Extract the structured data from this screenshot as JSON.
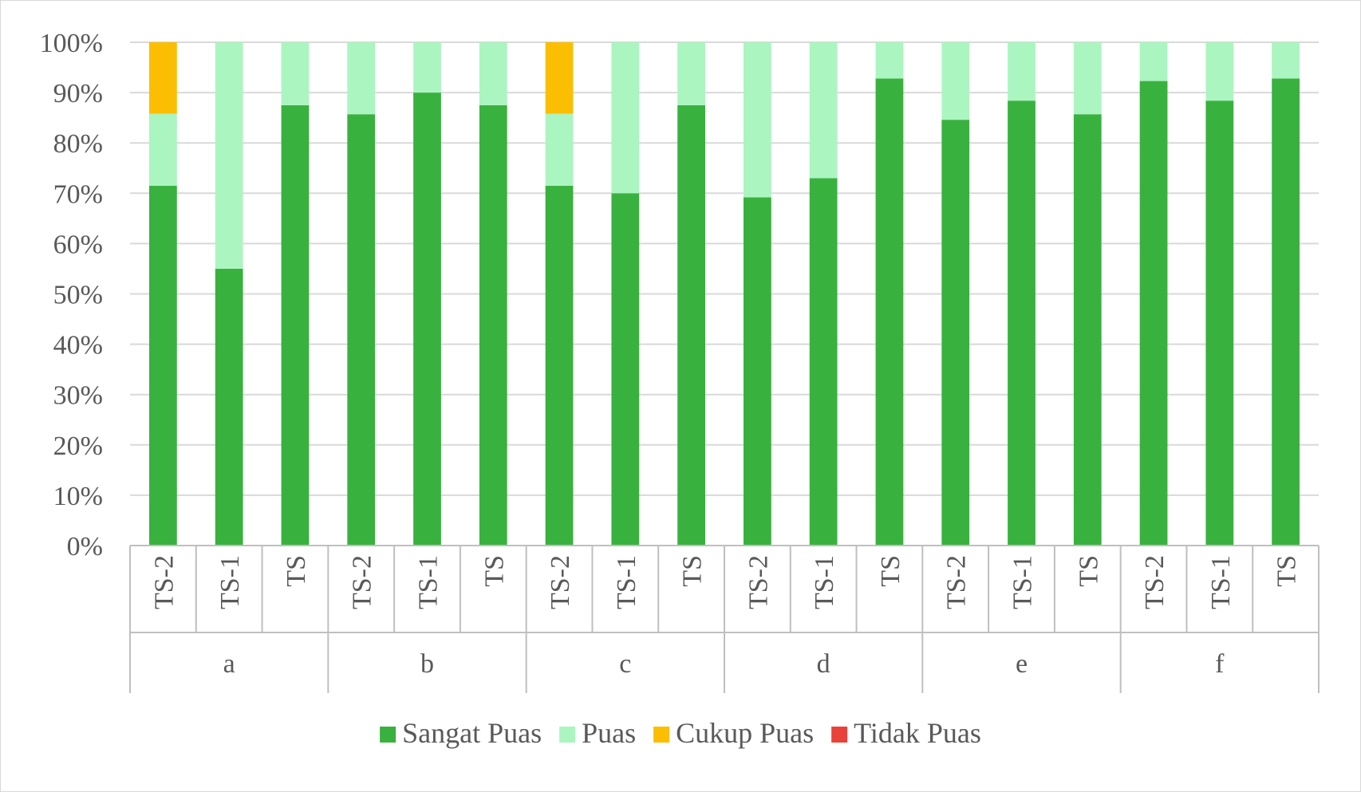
{
  "chart_data": {
    "type": "bar",
    "stacked": true,
    "percent_stacked": true,
    "title": "",
    "xlabel": "",
    "ylabel": "",
    "ylim": [
      0,
      100
    ],
    "y_ticks": [
      "0%",
      "10%",
      "20%",
      "30%",
      "40%",
      "50%",
      "60%",
      "70%",
      "80%",
      "90%",
      "100%"
    ],
    "grid": true,
    "legend_position": "bottom",
    "groups": [
      {
        "label": "a",
        "categories": [
          "TS-2",
          "TS-1",
          "TS"
        ]
      },
      {
        "label": "b",
        "categories": [
          "TS-2",
          "TS-1",
          "TS"
        ]
      },
      {
        "label": "c",
        "categories": [
          "TS-2",
          "TS-1",
          "TS"
        ]
      },
      {
        "label": "d",
        "categories": [
          "TS-2",
          "TS-1",
          "TS"
        ]
      },
      {
        "label": "e",
        "categories": [
          "TS-2",
          "TS-1",
          "TS"
        ]
      },
      {
        "label": "f",
        "categories": [
          "TS-2",
          "TS-1",
          "TS"
        ]
      }
    ],
    "series": [
      {
        "name": "Sangat Puas",
        "color": "#39b13f",
        "values": [
          71.5,
          55,
          87.5,
          85.7,
          90,
          87.5,
          71.5,
          70,
          87.5,
          69.2,
          73,
          92.8,
          84.6,
          88.4,
          85.7,
          92.3,
          88.4,
          92.8
        ]
      },
      {
        "name": "Puas",
        "color": "#abf5c0",
        "values": [
          14.3,
          45,
          12.5,
          14.3,
          10,
          12.5,
          14.3,
          30,
          12.5,
          30.8,
          27,
          7.2,
          15.4,
          11.6,
          14.3,
          7.7,
          11.6,
          7.2
        ]
      },
      {
        "name": "Cukup Puas",
        "color": "#fbbe02",
        "values": [
          14.2,
          0,
          0,
          0,
          0,
          0,
          14.2,
          0,
          0,
          0,
          0,
          0,
          0,
          0,
          0,
          0,
          0,
          0
        ]
      },
      {
        "name": "Tidak Puas",
        "color": "#e8423a",
        "values": [
          0,
          0,
          0,
          0,
          0,
          0,
          0,
          0,
          0,
          0,
          0,
          0,
          0,
          0,
          0,
          0,
          0,
          0
        ]
      }
    ]
  }
}
